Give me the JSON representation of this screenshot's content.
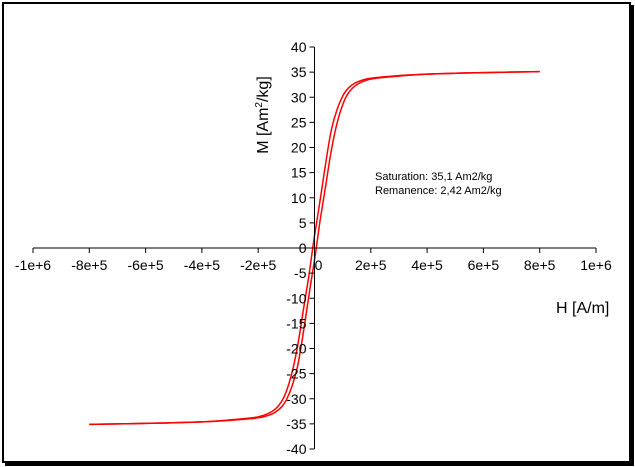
{
  "chart_data": {
    "type": "line",
    "title": "",
    "xlabel": "H [A/m]",
    "ylabel": "M [Am2/kg]",
    "ylabel_main": "M [Am",
    "ylabel_sup": "2",
    "ylabel_tail": "/kg]",
    "xlim": [
      -1000000,
      1000000
    ],
    "ylim": [
      -40,
      40
    ],
    "grid": false,
    "legend": "none",
    "series_color": "#ff0000",
    "x_ticks": [
      {
        "value": -1000000,
        "label": "-1e+6"
      },
      {
        "value": -800000,
        "label": "-8e+5"
      },
      {
        "value": -600000,
        "label": "-6e+5"
      },
      {
        "value": -400000,
        "label": "-4e+5"
      },
      {
        "value": -200000,
        "label": "-2e+5"
      },
      {
        "value": 0,
        "label": "0"
      },
      {
        "value": 200000,
        "label": "2e+5"
      },
      {
        "value": 400000,
        "label": "4e+5"
      },
      {
        "value": 600000,
        "label": "6e+5"
      },
      {
        "value": 800000,
        "label": "8e+5"
      },
      {
        "value": 1000000,
        "label": "1e+6"
      }
    ],
    "y_ticks": [
      {
        "value": 40,
        "label": "40"
      },
      {
        "value": 35,
        "label": "35"
      },
      {
        "value": 30,
        "label": "30"
      },
      {
        "value": 25,
        "label": "25"
      },
      {
        "value": 20,
        "label": "20"
      },
      {
        "value": 15,
        "label": "15"
      },
      {
        "value": 10,
        "label": "10"
      },
      {
        "value": 5,
        "label": "5"
      },
      {
        "value": 0,
        "label": "0"
      },
      {
        "value": -5,
        "label": "-5"
      },
      {
        "value": -10,
        "label": "-10"
      },
      {
        "value": -15,
        "label": "-15"
      },
      {
        "value": -20,
        "label": "-20"
      },
      {
        "value": -25,
        "label": "-25"
      },
      {
        "value": -30,
        "label": "-30"
      },
      {
        "value": -35,
        "label": "-35"
      },
      {
        "value": -40,
        "label": "-40"
      }
    ],
    "series": [
      {
        "values_descending": {
          "x": [
            800000,
            600000,
            400000,
            300000,
            200000,
            150000,
            120000,
            100000,
            80000,
            60000,
            40000,
            20000,
            0,
            -10000,
            -20000,
            -40000,
            -60000,
            -80000,
            -100000,
            -120000,
            -150000,
            -200000,
            -300000,
            -400000,
            -600000,
            -800000
          ],
          "y": [
            35.1,
            34.9,
            34.6,
            34.3,
            33.8,
            33.0,
            31.8,
            30.2,
            27.5,
            23.5,
            17.0,
            9.5,
            2.4,
            -1.5,
            -5.5,
            -12.5,
            -19.5,
            -24.8,
            -28.5,
            -30.8,
            -32.5,
            -33.6,
            -34.2,
            -34.6,
            -34.9,
            -35.1
          ]
        },
        "values_ascending": {
          "x": [
            -800000,
            -600000,
            -400000,
            -300000,
            -200000,
            -150000,
            -120000,
            -100000,
            -80000,
            -60000,
            -40000,
            -20000,
            0,
            10000,
            20000,
            40000,
            60000,
            80000,
            100000,
            120000,
            150000,
            200000,
            300000,
            400000,
            600000,
            800000
          ],
          "y": [
            -35.1,
            -34.9,
            -34.6,
            -34.3,
            -33.8,
            -33.0,
            -31.8,
            -30.2,
            -27.5,
            -23.5,
            -17.0,
            -9.5,
            -2.4,
            1.5,
            5.5,
            12.5,
            19.5,
            24.8,
            28.5,
            30.8,
            32.5,
            33.6,
            34.2,
            34.6,
            34.9,
            35.1
          ]
        }
      }
    ],
    "annotations": [
      "Saturation: 35,1 Am2/kg",
      "Remanence: 2,42 Am2/kg"
    ]
  }
}
